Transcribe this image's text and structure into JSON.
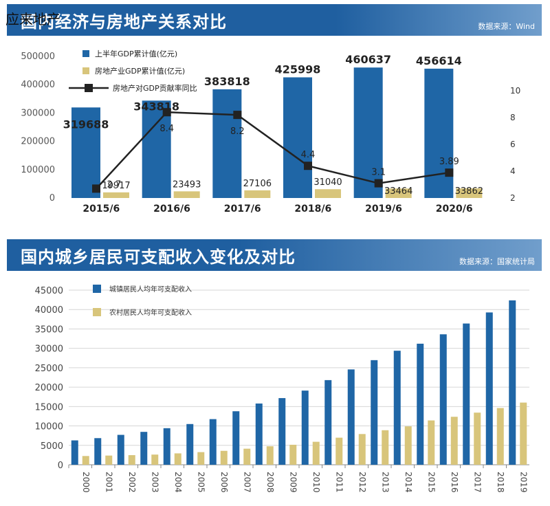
{
  "watermark": "应来地产",
  "chart1_banner": {
    "title": "国内经济与房地产关系对比",
    "source": "数据来源：Wind"
  },
  "chart2_banner": {
    "title": "国内城乡居民可支配收入变化及对比",
    "source": "数据来源：国家统计局"
  },
  "colors": {
    "banner": "#1f5fa0",
    "blue_bar": "#1f66a6",
    "gold_bar": "#d8c57b",
    "line": "#222222"
  },
  "chart_data": [
    {
      "type": "bar",
      "categories": [
        "2015/6",
        "2016/6",
        "2017/6",
        "2018/6",
        "2019/6",
        "2020/6"
      ],
      "series": [
        {
          "name": "上半年GDP累计值(亿元)",
          "values": [
            319688,
            343818,
            383818,
            425998,
            460637,
            456614
          ],
          "axis": "left",
          "color": "#1f66a6"
        },
        {
          "name": "房地产业GDP累计值(亿元)",
          "values": [
            19917,
            23493,
            27106,
            31040,
            33464,
            33862
          ],
          "axis": "left",
          "color": "#d8c57b"
        },
        {
          "name": "房地产对GDP贡献率同比",
          "type": "line",
          "values": [
            2.7,
            8.4,
            8.2,
            4.4,
            3.1,
            3.89
          ],
          "axis": "right",
          "color": "#222222"
        }
      ],
      "ylim": [
        0,
        500000
      ],
      "yticks": [
        0,
        100000,
        200000,
        300000,
        400000,
        500000
      ],
      "ytick_labels": [
        "0",
        "100000",
        "200000",
        "300000",
        "400000",
        "500000"
      ],
      "y2lim": [
        2,
        10
      ],
      "y2ticks": [
        2,
        4,
        6,
        8,
        10
      ],
      "legend": "top-left",
      "grid": false
    },
    {
      "type": "bar",
      "categories": [
        "2000",
        "2001",
        "2002",
        "2003",
        "2004",
        "2005",
        "2006",
        "2007",
        "2008",
        "2009",
        "2010",
        "2011",
        "2012",
        "2013",
        "2014",
        "2015",
        "2016",
        "2017",
        "2018",
        "2019"
      ],
      "series": [
        {
          "name": "城镇居民人均年可支配收入",
          "values": [
            6280,
            6860,
            7703,
            8472,
            9422,
            10493,
            11759,
            13786,
            15781,
            17175,
            19109,
            21810,
            24565,
            26955,
            29381,
            31195,
            33616,
            36396,
            39251,
            42359
          ],
          "color": "#1f66a6"
        },
        {
          "name": "农村居民人均年可支配收入",
          "values": [
            2253,
            2366,
            2476,
            2622,
            2936,
            3255,
            3587,
            4140,
            4761,
            5153,
            5919,
            6977,
            7917,
            8896,
            9892,
            11422,
            12363,
            13432,
            14617,
            16021
          ],
          "color": "#d8c57b"
        }
      ],
      "ylim": [
        0,
        45000
      ],
      "yticks": [
        0,
        5000,
        10000,
        15000,
        20000,
        25000,
        30000,
        35000,
        40000,
        45000
      ],
      "legend": "top-left",
      "grid": true
    }
  ]
}
